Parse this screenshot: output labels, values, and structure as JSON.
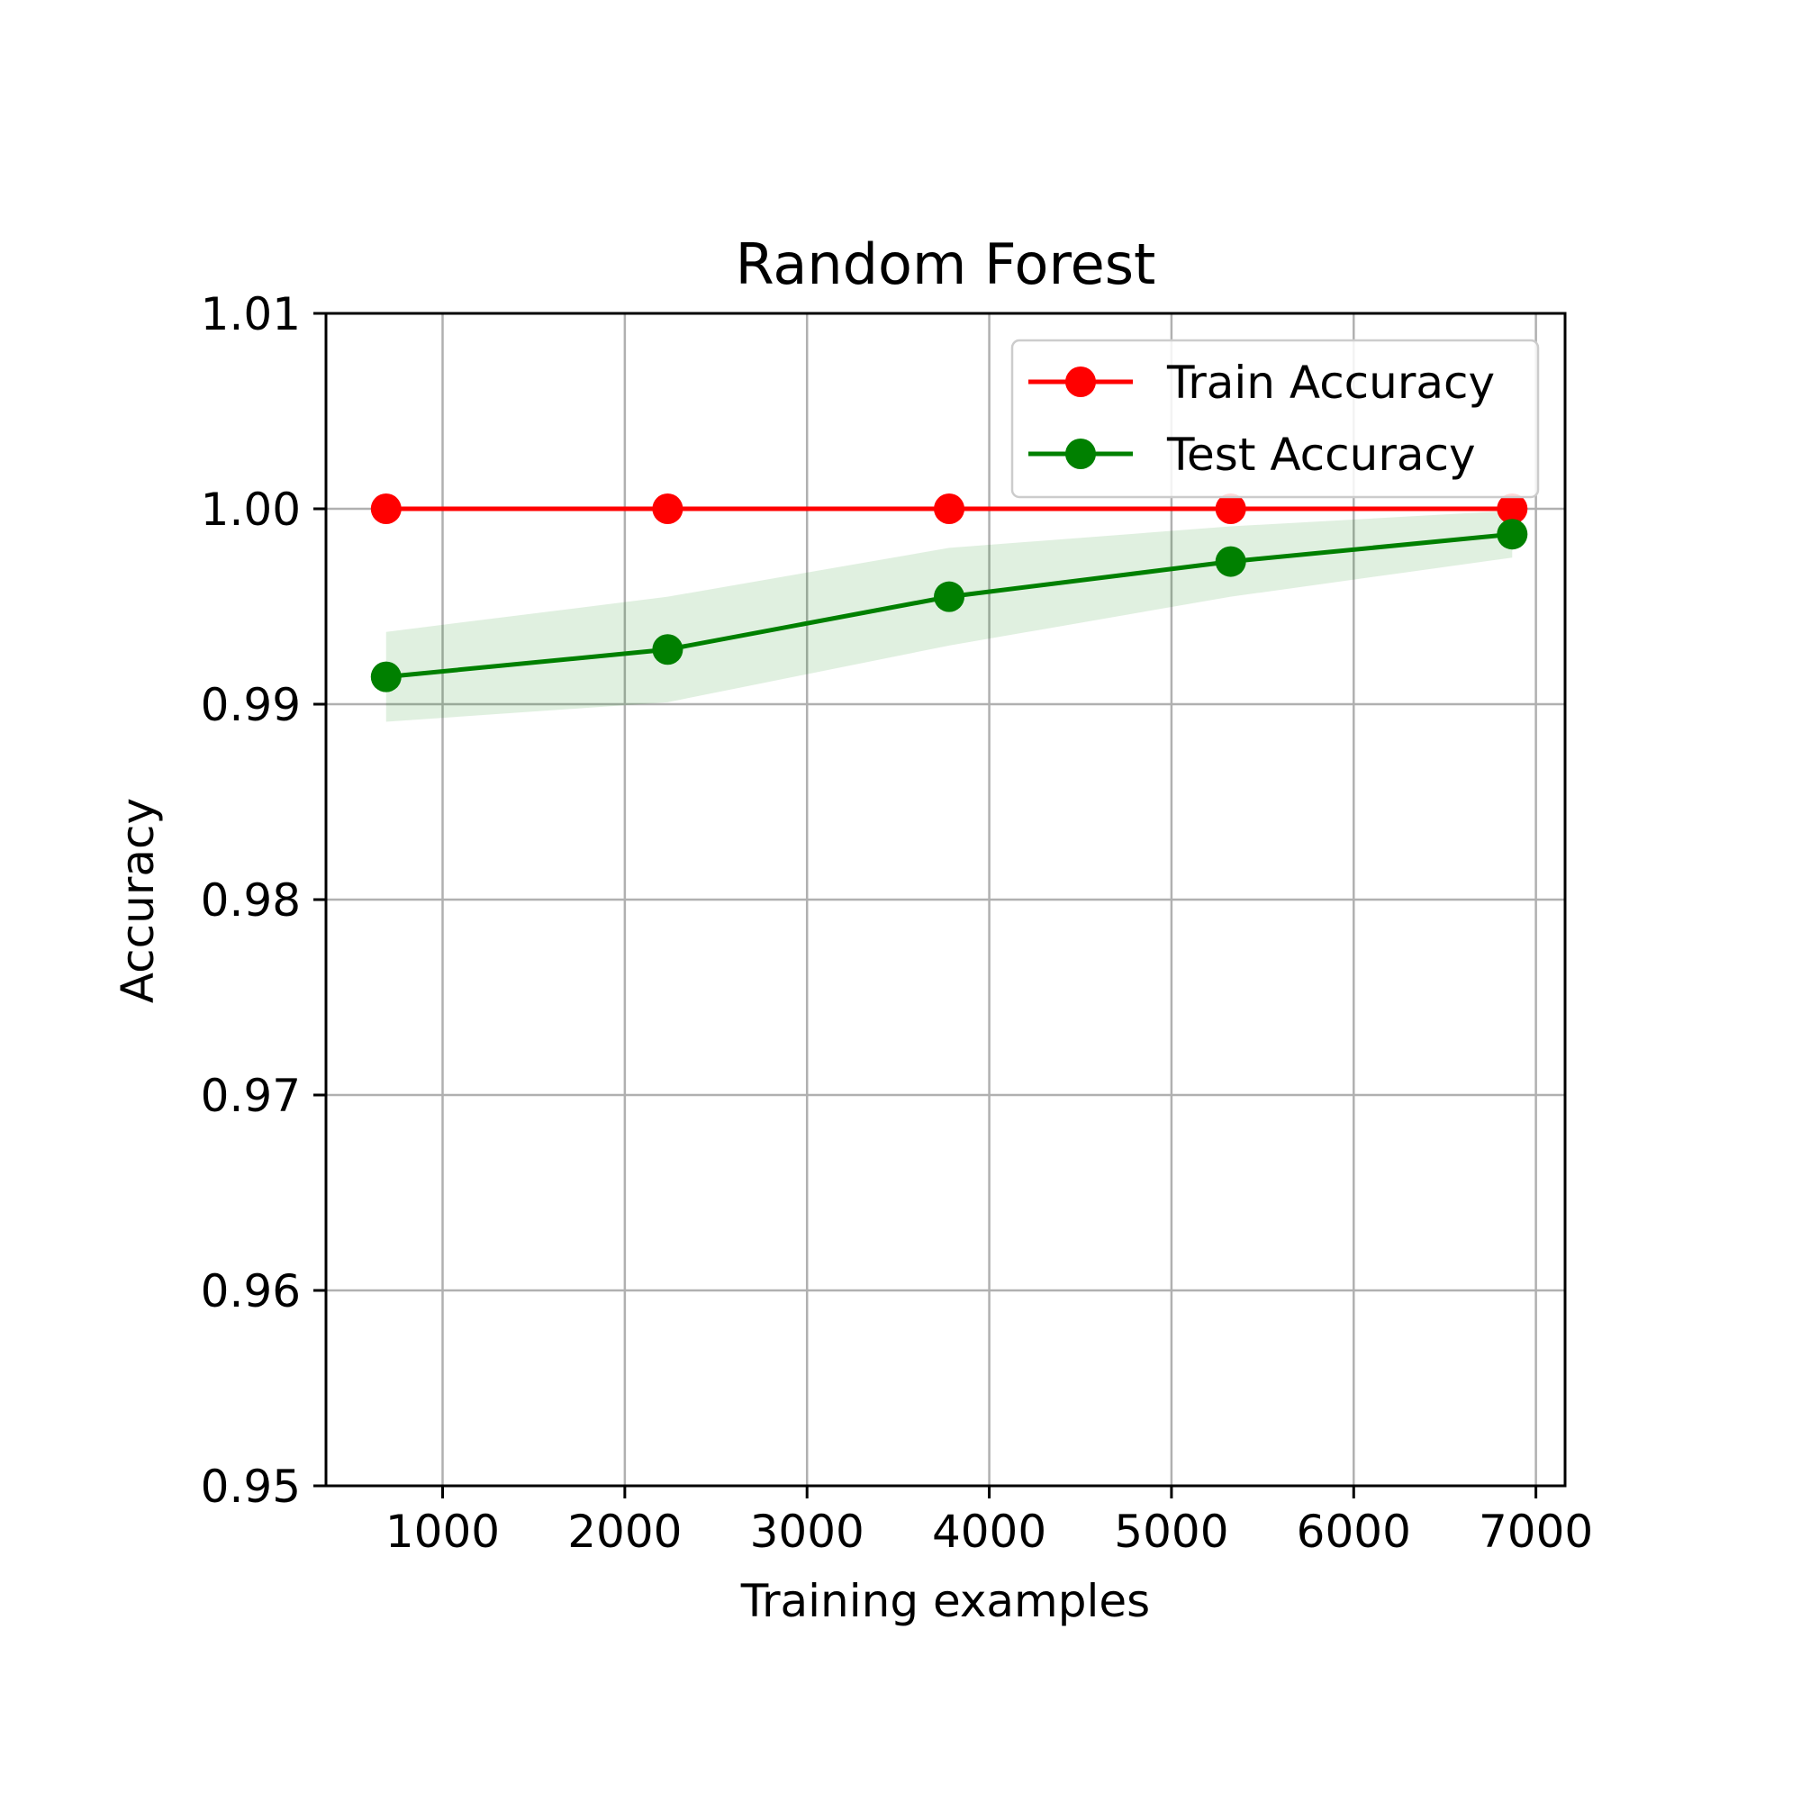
{
  "chart_data": {
    "type": "line",
    "title": "Random Forest",
    "xlabel": "Training examples",
    "ylabel": "Accuracy",
    "xlim": [
      360,
      7160
    ],
    "ylim": [
      0.95,
      1.01
    ],
    "xticks": [
      1000,
      2000,
      3000,
      4000,
      5000,
      6000,
      7000
    ],
    "yticks": [
      0.95,
      0.96,
      0.97,
      0.98,
      0.99,
      1.0,
      1.01
    ],
    "xtick_labels": [
      "1000",
      "2000",
      "3000",
      "4000",
      "5000",
      "6000",
      "7000"
    ],
    "ytick_labels": [
      "0.95",
      "0.96",
      "0.97",
      "0.98",
      "0.99",
      "1.00",
      "1.01"
    ],
    "grid": true,
    "legend_position": "upper right",
    "x": [
      690,
      2235,
      3780,
      5325,
      6870
    ],
    "series": [
      {
        "name": "Train Accuracy",
        "color": "#ff0000",
        "marker": "circle",
        "values": [
          1.0,
          1.0,
          1.0,
          1.0,
          1.0
        ]
      },
      {
        "name": "Test Accuracy",
        "color": "#008000",
        "marker": "circle",
        "values": [
          0.9914,
          0.9928,
          0.9955,
          0.9973,
          0.9987
        ],
        "band_lower": [
          0.9891,
          0.9901,
          0.993,
          0.9955,
          0.9975
        ],
        "band_upper": [
          0.9937,
          0.9955,
          0.998,
          0.9991,
          0.9999
        ],
        "band_color": "#008000"
      }
    ]
  }
}
